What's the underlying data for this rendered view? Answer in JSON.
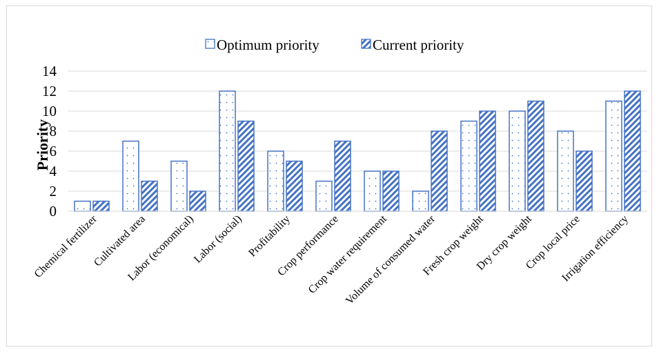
{
  "chart_data": {
    "type": "bar",
    "title": "",
    "xlabel": "",
    "ylabel": "Priority",
    "ylim": [
      0,
      14
    ],
    "yticks": [
      0,
      2,
      4,
      6,
      8,
      10,
      12,
      14
    ],
    "grid": true,
    "legend_position": "top",
    "categories": [
      "Chemical fertilizer",
      "Cultivated area",
      "Labor (economical)",
      "Labor (social)",
      "Profitability",
      "Crop performance",
      "Crop water requirement",
      "Volume of consumed water",
      "Fresh crop weight",
      "Dry crop weight",
      "Crop local price",
      "Irrigation efficiency"
    ],
    "series": [
      {
        "name": "Optimum priority",
        "values": [
          1,
          7,
          5,
          12,
          6,
          3,
          4,
          2,
          9,
          10,
          8,
          11
        ],
        "pattern": "dotted"
      },
      {
        "name": "Current priority",
        "values": [
          1,
          3,
          2,
          9,
          5,
          7,
          4,
          8,
          10,
          11,
          6,
          12
        ],
        "pattern": "diagonal-hatch"
      }
    ],
    "colors": {
      "bar_outline": "#4472c4",
      "hatch": "#4472c4",
      "dots": "#4472c4",
      "grid": "#d9d9d9"
    }
  }
}
